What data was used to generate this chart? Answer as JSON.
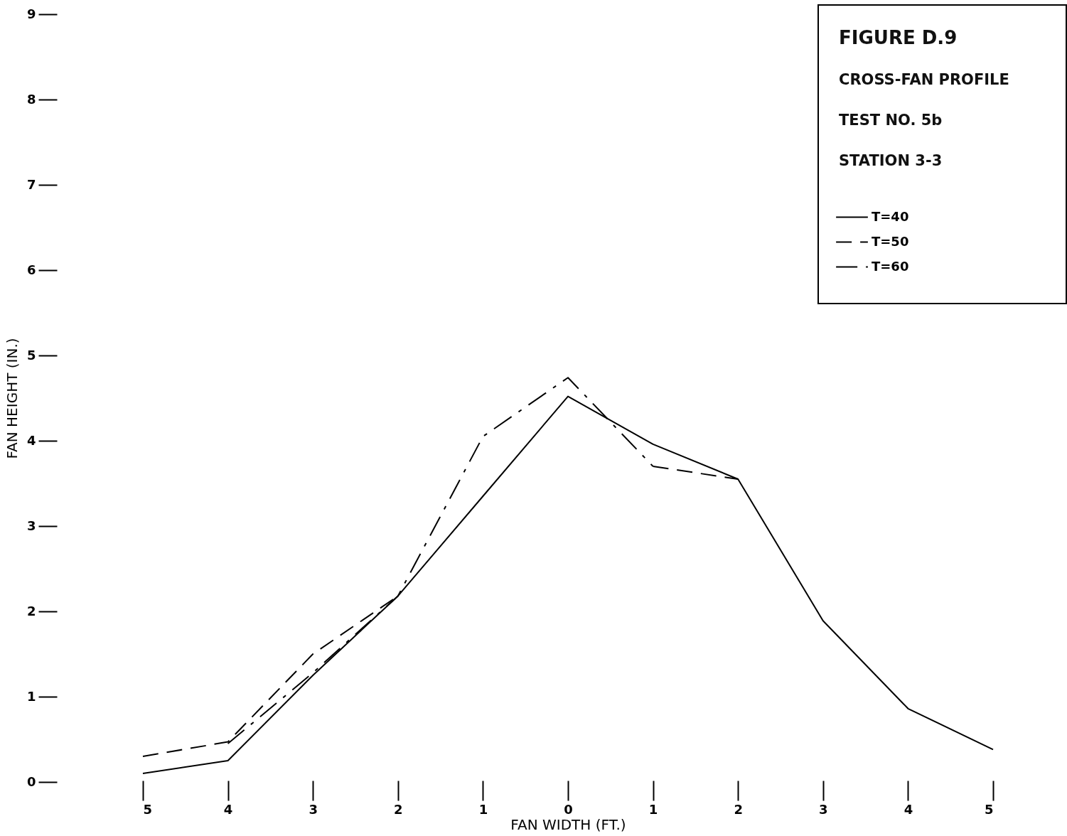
{
  "chart_data": {
    "type": "line",
    "title": "FIGURE D.9",
    "subtitle": "CROSS-FAN PROFILE",
    "annotations": [
      "TEST NO. 5b",
      "STATION 3-3"
    ],
    "xlabel": "FAN WIDTH (FT.)",
    "ylabel": "FAN HEIGHT (IN.)",
    "x": [
      -5,
      -4,
      -3,
      -2,
      -1,
      0,
      1,
      2,
      3,
      4,
      5
    ],
    "series": [
      {
        "name": "T=40",
        "color": "#000000",
        "line_style": "solid",
        "values": [
          0.1,
          0.25,
          1.25,
          2.18,
          3.35,
          4.52,
          3.96,
          3.55,
          1.89,
          0.86,
          0.38
        ]
      },
      {
        "name": "T=50",
        "color": "#000000",
        "line_style": "dashed",
        "values": [
          0.3,
          0.47,
          1.5,
          2.18,
          null,
          null,
          3.7,
          3.55,
          null,
          null,
          null
        ]
      },
      {
        "name": "T=60",
        "color": "#000000",
        "line_style": "dashdot",
        "values": [
          null,
          0.45,
          1.28,
          2.18,
          4.05,
          4.74,
          3.7,
          null,
          null,
          null,
          null
        ]
      }
    ],
    "xlim": [
      -5,
      5
    ],
    "ylim": [
      0,
      9
    ],
    "xticks": [
      {
        "value": -5,
        "label": "5"
      },
      {
        "value": -4,
        "label": "4"
      },
      {
        "value": -3,
        "label": "3"
      },
      {
        "value": -2,
        "label": "2"
      },
      {
        "value": -1,
        "label": "1"
      },
      0,
      1,
      2,
      3,
      4,
      5
    ],
    "yticks": [
      0,
      1,
      2,
      3,
      4,
      5,
      6,
      7,
      8,
      9
    ],
    "grid": false,
    "legend": "top right"
  }
}
